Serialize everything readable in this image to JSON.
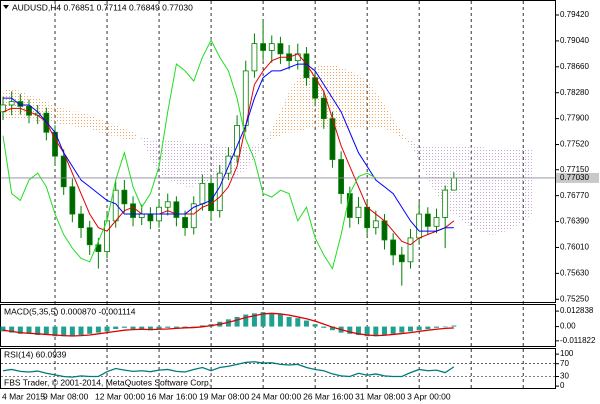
{
  "header": "AUDUSD,H4  0.76851 0.77114 0.76849 0.77030",
  "footer": "FBS Trader, © 2001-2014, MetaQuotes Software Corp.",
  "chart_data": [
    {
      "type": "candlestick",
      "categories": [
        "4 Mar 2015",
        null,
        null,
        null,
        null,
        null,
        "9 Mar 08:00",
        null,
        null,
        null,
        null,
        null,
        "12 Mar 00:00",
        null,
        null,
        null,
        null,
        null,
        "16 Mar 16:00",
        null,
        null,
        null,
        null,
        null,
        "19 Mar 08:00",
        null,
        null,
        null,
        null,
        null,
        "24 Mar 00:00",
        null,
        null,
        null,
        null,
        null,
        "26 Mar 16:00",
        null,
        null,
        null,
        null,
        null,
        "31 Mar 08:00",
        null,
        null,
        null,
        null,
        null,
        "3 Apr 00:00",
        null,
        null,
        null,
        null,
        null,
        null,
        null,
        null,
        null,
        null,
        null,
        null,
        null
      ],
      "open": [
        0.78,
        0.781,
        0.7815,
        0.7808,
        0.7795,
        0.7798,
        0.777,
        0.7735,
        0.769,
        0.765,
        0.763,
        0.7605,
        0.7595,
        0.764,
        0.7685,
        0.7665,
        0.7645,
        0.765,
        0.764,
        0.766,
        0.7668,
        0.7645,
        0.763,
        0.7665,
        0.7695,
        0.7655,
        0.771,
        0.7735,
        0.778,
        0.786,
        0.79,
        0.789,
        0.79,
        0.7885,
        0.7875,
        0.7885,
        0.785,
        0.782,
        0.779,
        0.773,
        0.768,
        0.7645,
        0.766,
        0.763,
        0.764,
        0.7612,
        0.759,
        0.758,
        0.7615,
        0.765,
        0.7632,
        0.7645,
        0.76851,
        null,
        null,
        null,
        null,
        null,
        null,
        null,
        null,
        null
      ],
      "high": [
        0.7822,
        0.783,
        0.7826,
        0.7818,
        0.781,
        0.7806,
        0.778,
        0.7745,
        0.7702,
        0.7662,
        0.764,
        0.7615,
        0.7652,
        0.7698,
        0.77,
        0.7676,
        0.7664,
        0.766,
        0.7672,
        0.768,
        0.7676,
        0.7655,
        0.7676,
        0.7708,
        0.7705,
        0.7722,
        0.7748,
        0.7795,
        0.7875,
        0.7915,
        0.7935,
        0.7912,
        0.791,
        0.7898,
        0.79,
        0.7895,
        0.786,
        0.783,
        0.78,
        0.7742,
        0.769,
        0.7675,
        0.767,
        0.7655,
        0.765,
        0.7622,
        0.7602,
        0.7628,
        0.7668,
        0.766,
        0.7658,
        0.7692,
        0.77114,
        null,
        null,
        null,
        null,
        null,
        null,
        null,
        null,
        null
      ],
      "low": [
        0.7788,
        0.7795,
        0.7796,
        0.7783,
        0.7782,
        0.7758,
        0.7722,
        0.7678,
        0.7638,
        0.7615,
        0.759,
        0.757,
        0.7585,
        0.763,
        0.7652,
        0.7632,
        0.7634,
        0.7628,
        0.763,
        0.7648,
        0.7632,
        0.7618,
        0.762,
        0.7655,
        0.764,
        0.7645,
        0.77,
        0.7725,
        0.777,
        0.785,
        0.7875,
        0.7872,
        0.787,
        0.7862,
        0.7862,
        0.7838,
        0.7808,
        0.7775,
        0.7718,
        0.7665,
        0.763,
        0.7635,
        0.7618,
        0.762,
        0.7598,
        0.7575,
        0.7545,
        0.757,
        0.7605,
        0.762,
        0.7622,
        0.76,
        0.76849,
        null,
        null,
        null,
        null,
        null,
        null,
        null,
        null,
        null
      ],
      "close": [
        0.781,
        0.7815,
        0.7808,
        0.7795,
        0.7798,
        0.777,
        0.7735,
        0.769,
        0.765,
        0.763,
        0.7605,
        0.7595,
        0.764,
        0.7685,
        0.7665,
        0.7645,
        0.765,
        0.764,
        0.766,
        0.7668,
        0.7645,
        0.763,
        0.7665,
        0.7695,
        0.7655,
        0.771,
        0.7735,
        0.778,
        0.786,
        0.79,
        0.789,
        0.79,
        0.7885,
        0.7875,
        0.7885,
        0.785,
        0.782,
        0.779,
        0.773,
        0.768,
        0.7645,
        0.766,
        0.763,
        0.764,
        0.7612,
        0.759,
        0.758,
        0.7615,
        0.765,
        0.7632,
        0.7645,
        0.76851,
        0.7703,
        null,
        null,
        null,
        null,
        null,
        null,
        null,
        null,
        null
      ],
      "candle_colors": {
        "up": "#ffffff",
        "down": "#006400",
        "outline": "#008000"
      },
      "series": [
        {
          "color": "#e00000",
          "values": [
            0.78,
            0.7805,
            0.7805,
            0.78,
            0.7795,
            0.7785,
            0.776,
            0.774,
            0.771,
            0.768,
            0.765,
            0.763,
            0.7625,
            0.764,
            0.7655,
            0.766,
            0.765,
            0.765,
            0.765,
            0.7655,
            0.765,
            0.765,
            0.765,
            0.766,
            0.7665,
            0.7675,
            0.769,
            0.772,
            0.778,
            0.784,
            0.786,
            0.7875,
            0.788,
            0.788,
            0.7885,
            0.787,
            0.785,
            0.783,
            0.779,
            0.775,
            0.772,
            0.769,
            0.766,
            0.765,
            0.764,
            0.7625,
            0.761,
            0.7605,
            0.7615,
            0.762,
            0.7625,
            0.763,
            0.764,
            null,
            null,
            null,
            null,
            null,
            null,
            null,
            null,
            null
          ]
        },
        {
          "color": "#0000ff",
          "values": [
            0.782,
            0.782,
            0.781,
            0.781,
            0.78,
            0.7785,
            0.777,
            0.774,
            0.772,
            0.77,
            0.769,
            0.768,
            0.767,
            0.7665,
            0.765,
            0.765,
            0.765,
            0.765,
            0.765,
            0.765,
            0.765,
            0.765,
            0.766,
            0.7665,
            0.767,
            0.769,
            0.772,
            0.775,
            0.778,
            0.782,
            0.785,
            0.786,
            0.786,
            0.7865,
            0.787,
            0.787,
            0.786,
            0.784,
            0.782,
            0.78,
            0.777,
            0.774,
            0.772,
            0.77,
            0.769,
            0.768,
            0.766,
            0.764,
            0.7625,
            0.7625,
            0.7625,
            0.763,
            0.763,
            null,
            null,
            null,
            null,
            null,
            null,
            null,
            null,
            null
          ]
        },
        {
          "color": "#22dd22",
          "values": [
            0.7765,
            0.768,
            0.767,
            0.77,
            0.771,
            0.769,
            0.765,
            0.762,
            0.76,
            0.7585,
            0.758,
            0.761,
            0.764,
            0.77,
            0.774,
            0.769,
            0.766,
            0.768,
            0.772,
            0.78,
            0.787,
            0.786,
            0.7845,
            0.788,
            0.7905,
            0.788,
            0.786,
            0.782,
            0.776,
            0.773,
            0.768,
            0.7675,
            0.7685,
            0.768,
            0.764,
            0.766,
            0.7615,
            0.759,
            0.757,
            0.762,
            0.768,
            0.7705,
            0.771,
            0.7703,
            null,
            null,
            null,
            null,
            null,
            null,
            null,
            null,
            null,
            null,
            null,
            null,
            null,
            null,
            null,
            null,
            null,
            null
          ]
        }
      ],
      "cloud": {
        "colors": [
          "#f4a460",
          "#c8a8d8"
        ],
        "span_a": [
          0.783,
          0.7835,
          0.783,
          0.7825,
          0.782,
          0.7815,
          0.781,
          0.7805,
          0.78,
          0.78,
          0.7795,
          0.779,
          0.7785,
          0.778,
          0.7775,
          0.777,
          0.776,
          0.773,
          0.771,
          0.77,
          0.7695,
          0.769,
          0.769,
          0.7695,
          0.77,
          0.77,
          0.77,
          0.7705,
          0.7715,
          0.773,
          0.775,
          0.7775,
          0.78,
          0.783,
          0.785,
          0.786,
          0.7865,
          0.787,
          0.787,
          0.7865,
          0.786,
          0.7855,
          0.7845,
          0.783,
          0.781,
          0.779,
          0.777,
          0.775,
          0.773,
          0.77,
          0.768,
          0.766,
          0.765,
          0.764,
          0.763,
          0.7625,
          0.762,
          0.762,
          0.7625,
          0.763,
          0.764,
          0.765
        ],
        "span_b": [
          0.779,
          0.779,
          0.779,
          0.779,
          0.7785,
          0.7785,
          0.7785,
          0.778,
          0.778,
          0.7775,
          0.7775,
          0.777,
          0.7765,
          0.7765,
          0.776,
          0.776,
          0.7765,
          0.776,
          0.776,
          0.776,
          0.776,
          0.7755,
          0.7755,
          0.7755,
          0.7755,
          0.775,
          0.775,
          0.775,
          0.775,
          0.775,
          0.7755,
          0.776,
          0.7765,
          0.777,
          0.777,
          0.7775,
          0.7775,
          0.7775,
          0.7775,
          0.7775,
          0.7775,
          0.7775,
          0.7775,
          0.7775,
          0.7775,
          0.777,
          0.776,
          0.776,
          0.775,
          0.775,
          0.775,
          0.775,
          0.775,
          0.775,
          0.775,
          0.775,
          0.7745,
          0.7745,
          0.7745,
          0.7745,
          0.7745,
          0.7745
        ]
      },
      "price_line": {
        "value": 0.7703,
        "label": "0.77030"
      },
      "ylim": [
        0.7521,
        0.7964
      ],
      "yticks": [
        {
          "value": 0.7942,
          "label": "0.79420"
        },
        {
          "value": 0.7904,
          "label": "0.79040"
        },
        {
          "value": 0.7866,
          "label": "0.78660"
        },
        {
          "value": 0.7828,
          "label": "0.78280"
        },
        {
          "value": 0.779,
          "label": "0.77900"
        },
        {
          "value": 0.7752,
          "label": "0.77520"
        },
        {
          "value": 0.7715,
          "label": "0.77150"
        },
        {
          "value": 0.7677,
          "label": "0.76770"
        },
        {
          "value": 0.7639,
          "label": "0.76390"
        },
        {
          "value": 0.7601,
          "label": "0.76010"
        },
        {
          "value": 0.7563,
          "label": "0.75630"
        },
        {
          "value": 0.7525,
          "label": "0.75250"
        }
      ]
    },
    {
      "type": "macd",
      "title": "MACD(5,35,5) 0.000870 -0.001114",
      "histogram": {
        "color": "#20a090",
        "values": [
          -0.004,
          -0.005,
          -0.006,
          -0.006,
          -0.007,
          -0.007,
          -0.008,
          -0.008,
          -0.008,
          -0.007,
          -0.006,
          -0.005,
          -0.004,
          -0.002,
          -0.001,
          -0.002,
          -0.002,
          -0.003,
          -0.002,
          -0.001,
          -0.001,
          -0.001,
          0.0,
          0.001,
          0.002,
          0.004,
          0.006,
          0.008,
          0.01,
          0.011,
          0.012,
          0.011,
          0.01,
          0.008,
          0.007,
          0.005,
          0.002,
          -0.001,
          -0.003,
          -0.005,
          -0.006,
          -0.007,
          -0.008,
          -0.008,
          -0.007,
          -0.006,
          -0.005,
          -0.004,
          -0.003,
          -0.002,
          -0.001,
          -0.0005,
          0.00087
        ]
      },
      "signal": {
        "color": "#e00000",
        "values": [
          -0.003,
          -0.004,
          -0.005,
          -0.0055,
          -0.006,
          -0.0065,
          -0.007,
          -0.0075,
          -0.0078,
          -0.0075,
          -0.007,
          -0.006,
          -0.005,
          -0.004,
          -0.003,
          -0.0025,
          -0.0022,
          -0.0025,
          -0.0022,
          -0.002,
          -0.0015,
          -0.001,
          -0.0008,
          -0.0002,
          0.0008,
          0.002,
          0.0035,
          0.0055,
          0.0075,
          0.009,
          0.0105,
          0.011,
          0.0105,
          0.0095,
          0.008,
          0.0065,
          0.0045,
          0.002,
          -0.0005,
          -0.0025,
          -0.0045,
          -0.006,
          -0.007,
          -0.0075,
          -0.0072,
          -0.0065,
          -0.0058,
          -0.005,
          -0.004,
          -0.003,
          -0.0022,
          -0.0015,
          -0.001114
        ]
      },
      "ylim": [
        -0.0161,
        0.0179
      ],
      "yticks": [
        0.012838,
        {
          "value": 0,
          "label": "0.00"
        },
        -0.011822
      ]
    },
    {
      "type": "rsi",
      "title": "RSI(14) 60.0939",
      "color": "#007b7b",
      "values": [
        48,
        52,
        46,
        44,
        47,
        40,
        35,
        30,
        28,
        32,
        30,
        30,
        45,
        55,
        50,
        46,
        48,
        45,
        50,
        52,
        46,
        44,
        52,
        58,
        48,
        58,
        62,
        68,
        74,
        76,
        72,
        73,
        68,
        66,
        68,
        58,
        52,
        48,
        38,
        32,
        30,
        40,
        34,
        38,
        32,
        30,
        30,
        42,
        52,
        48,
        50,
        42,
        60.0939
      ],
      "levels": [
        70,
        30
      ],
      "ylim": [
        -6,
        116
      ],
      "yticks": [
        100,
        70,
        30,
        0
      ]
    }
  ]
}
